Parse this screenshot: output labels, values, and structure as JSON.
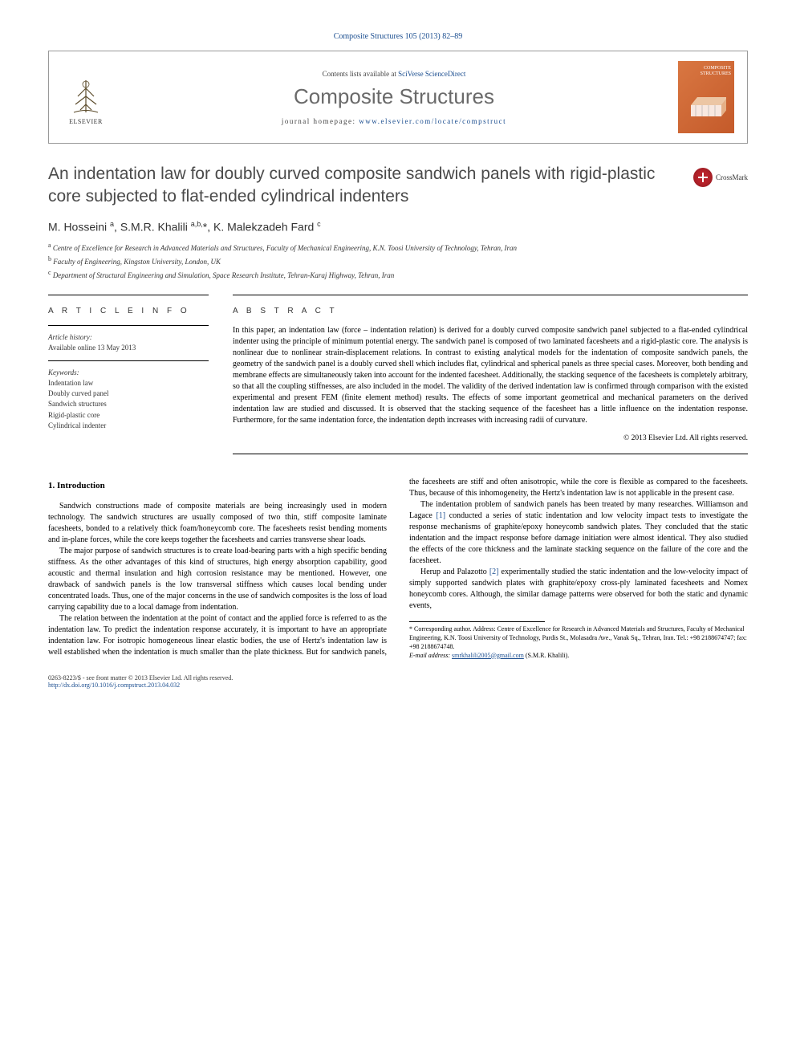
{
  "journal_ref": "Composite Structures 105 (2013) 82–89",
  "header": {
    "contents_prefix": "Contents lists available at ",
    "contents_link": "SciVerse ScienceDirect",
    "journal_title": "Composite Structures",
    "homepage_prefix": "journal homepage: ",
    "homepage_url": "www.elsevier.com/locate/compstruct",
    "publisher_label": "ELSEVIER",
    "cover_label": "COMPOSITE\nSTRUCTURES"
  },
  "article": {
    "title": "An indentation law for doubly curved composite sandwich panels with rigid-plastic core subjected to flat-ended cylindrical indenters",
    "crossmark": "CrossMark",
    "authors_html": "M. Hosseini <sup>a</sup>, S.M.R. Khalili <sup>a,b,</sup>*, K. Malekzadeh Fard <sup>c</sup>",
    "affiliations": [
      {
        "sup": "a",
        "text": "Centre of Excellence for Research in Advanced Materials and Structures, Faculty of Mechanical Engineering, K.N. Toosi University of Technology, Tehran, Iran"
      },
      {
        "sup": "b",
        "text": "Faculty of Engineering, Kingston University, London, UK"
      },
      {
        "sup": "c",
        "text": "Department of Structural Engineering and Simulation, Space Research Institute, Tehran-Karaj Highway, Tehran, Iran"
      }
    ]
  },
  "info": {
    "label": "A R T I C L E   I N F O",
    "history_hdr": "Article history:",
    "history_val": "Available online 13 May 2013",
    "keywords_hdr": "Keywords:",
    "keywords": [
      "Indentation law",
      "Doubly curved panel",
      "Sandwich structures",
      "Rigid-plastic core",
      "Cylindrical indenter"
    ]
  },
  "abstract": {
    "label": "A B S T R A C T",
    "text": "In this paper, an indentation law (force – indentation relation) is derived for a doubly curved composite sandwich panel subjected to a flat-ended cylindrical indenter using the principle of minimum potential energy. The sandwich panel is composed of two laminated facesheets and a rigid-plastic core. The analysis is nonlinear due to nonlinear strain-displacement relations. In contrast to existing analytical models for the indentation of composite sandwich panels, the geometry of the sandwich panel is a doubly curved shell which includes flat, cylindrical and spherical panels as three special cases. Moreover, both bending and membrane effects are simultaneously taken into account for the indented facesheet. Additionally, the stacking sequence of the facesheets is completely arbitrary, so that all the coupling stiffnesses, are also included in the model. The validity of the derived indentation law is confirmed through comparison with the existed experimental and present FEM (finite element method) results. The effects of some important geometrical and mechanical parameters on the derived indentation law are studied and discussed. It is observed that the stacking sequence of the facesheet has a little influence on the indentation response. Furthermore, for the same indentation force, the indentation depth increases with increasing radii of curvature.",
    "copyright": "© 2013 Elsevier Ltd. All rights reserved."
  },
  "body": {
    "heading": "1. Introduction",
    "paragraphs": [
      "Sandwich constructions made of composite materials are being increasingly used in modern technology. The sandwich structures are usually composed of two thin, stiff composite laminate facesheets, bonded to a relatively thick foam/honeycomb core. The facesheets resist bending moments and in-plane forces, while the core keeps together the facesheets and carries transverse shear loads.",
      "The major purpose of sandwich structures is to create load-bearing parts with a high specific bending stiffness. As the other advantages of this kind of structures, high energy absorption capability, good acoustic and thermal insulation and high corrosion resistance may be mentioned. However, one drawback of sandwich panels is the low transversal stiffness which causes local bending under concentrated loads. Thus, one of the major concerns in the use of sandwich composites is the loss of load carrying capability due to a local damage from indentation.",
      "The relation between the indentation at the point of contact and the applied force is referred to as the indentation law. To predict the indentation response accurately, it is important to have an appropriate indentation law. For isotropic homogeneous linear elastic bodies, the use of Hertz's indentation law is well established when the indentation is much smaller than the plate thickness. But for sandwich panels, the facesheets are stiff and often anisotropic, while the core is flexible as compared to the facesheets. Thus, because of this inhomogeneity, the Hertz's indentation law is not applicable in the present case.",
      "The indentation problem of sandwich panels has been treated by many researches. Williamson and Lagace [1] conducted a series of static indentation and low velocity impact tests to investigate the response mechanisms of graphite/epoxy honeycomb sandwich plates. They concluded that the static indentation and the impact response before damage initiation were almost identical. They also studied the effects of the core thickness and the laminate stacking sequence on the failure of the core and the facesheet.",
      "Herup and Palazotto [2] experimentally studied the static indentation and the low-velocity impact of simply supported sandwich plates with graphite/epoxy cross-ply laminated facesheets and Nomex honeycomb cores. Although, the similar damage patterns were observed for both the static and dynamic events,"
    ]
  },
  "footnote": {
    "corr": "* Corresponding author. Address: Centre of Excellence for Research in Advanced Materials and Structures, Faculty of Mechanical Engineering, K.N. Toosi University of Technology, Pardis St., Molasadra Ave., Vanak Sq., Tehran, Iran. Tel.: +98 2188674747; fax: +98 2188674748.",
    "email_label": "E-mail address:",
    "email": "smrkhalili2005@gmail.com",
    "email_who": "(S.M.R. Khalili)."
  },
  "footer": {
    "left_line1": "0263-8223/$ - see front matter © 2013 Elsevier Ltd. All rights reserved.",
    "left_line2": "http://dx.doi.org/10.1016/j.compstruct.2013.04.032"
  },
  "colors": {
    "link": "#1a4d8f",
    "title_gray": "#4a4a4a",
    "journal_gray": "#6a6a6a",
    "cover_bg": "#d97742",
    "crossmark": "#b8222a"
  }
}
